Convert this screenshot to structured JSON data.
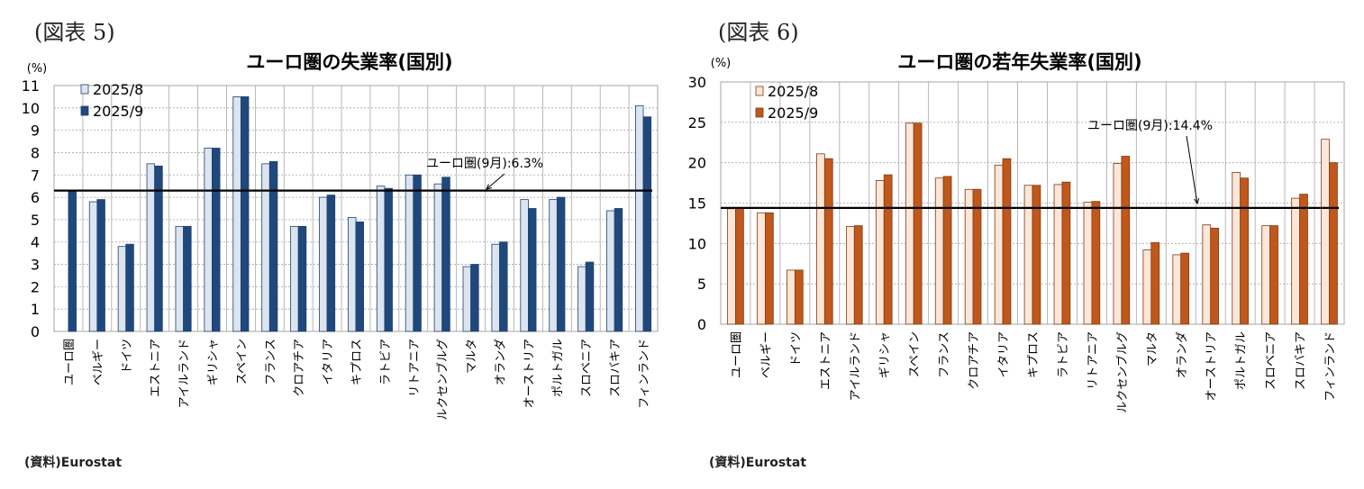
{
  "colors": {
    "c1_s1": "#dbe5f1",
    "c1_s2": "#1f497d",
    "c1_edge": "#24406a",
    "c2_s1": "#fbe6d8",
    "c2_s2": "#c0581b",
    "c2_edge": "#7f3a12",
    "grid": "#a6a6a6"
  },
  "chart_data": [
    {
      "type": "bar",
      "figure_label": "(図表 5)",
      "title": "ユーロ圏の失業率(国別)",
      "ylabel": "(%)",
      "xlabel": "",
      "ylim": [
        0,
        11
      ],
      "yticks": [
        0,
        1,
        2,
        3,
        4,
        5,
        6,
        7,
        8,
        9,
        10,
        11
      ],
      "grid": true,
      "legend_position": "top-left",
      "categories": [
        "ユーロ圏",
        "ベルギー",
        "ドイツ",
        "エストニア",
        "アイルランド",
        "ギリシャ",
        "スペイン",
        "フランス",
        "クロアチア",
        "イタリア",
        "キプロス",
        "ラトビア",
        "リトアニア",
        "ルクセンブルグ",
        "マルタ",
        "オランダ",
        "オーストリア",
        "ポルトガル",
        "スロベニア",
        "スロバキア",
        "フィンランド"
      ],
      "series": [
        {
          "name": "2025/8",
          "values": [
            null,
            5.8,
            3.8,
            7.5,
            4.7,
            8.2,
            10.5,
            7.5,
            4.7,
            6.0,
            5.1,
            6.5,
            7.0,
            6.6,
            2.9,
            3.9,
            5.9,
            5.9,
            2.9,
            5.4,
            10.1
          ]
        },
        {
          "name": "2025/9",
          "values": [
            6.3,
            5.9,
            3.9,
            7.4,
            4.7,
            8.2,
            10.5,
            7.6,
            4.7,
            6.1,
            4.9,
            6.4,
            7.0,
            6.9,
            3.0,
            4.0,
            5.5,
            6.0,
            3.1,
            5.5,
            9.6
          ]
        }
      ],
      "reference_line": {
        "value": 6.3,
        "label": "ユーロ圏(9月):6.3%"
      },
      "source": "(資料)Eurostat"
    },
    {
      "type": "bar",
      "figure_label": "(図表 6)",
      "title": "ユーロ圏の若年失業率(国別)",
      "ylabel": "(%)",
      "xlabel": "",
      "ylim": [
        0,
        30
      ],
      "yticks": [
        0,
        5,
        10,
        15,
        20,
        25,
        30
      ],
      "grid": true,
      "legend_position": "top-left",
      "categories": [
        "ユーロ圏",
        "ベルギー",
        "ドイツ",
        "エストニア",
        "アイルランド",
        "ギリシャ",
        "スペイン",
        "フランス",
        "クロアチア",
        "イタリア",
        "キプロス",
        "ラトビア",
        "リトアニア",
        "ルクセンブルグ",
        "マルタ",
        "オランダ",
        "オーストリア",
        "ポルトガル",
        "スロベニア",
        "スロバキア",
        "フィンランド"
      ],
      "series": [
        {
          "name": "2025/8",
          "values": [
            14.3,
            13.8,
            6.7,
            21.1,
            12.1,
            17.8,
            24.9,
            18.1,
            16.7,
            19.7,
            17.2,
            17.3,
            15.1,
            19.9,
            9.2,
            8.6,
            12.3,
            18.8,
            12.2,
            15.6,
            22.9
          ]
        },
        {
          "name": "2025/9",
          "values": [
            14.4,
            13.8,
            6.7,
            20.5,
            12.2,
            18.5,
            24.9,
            18.3,
            16.7,
            20.5,
            17.2,
            17.6,
            15.2,
            20.8,
            10.1,
            8.8,
            11.9,
            18.1,
            12.2,
            16.1,
            20.0
          ]
        }
      ],
      "reference_line": {
        "value": 14.4,
        "label": "ユーロ圏(9月):14.4%"
      },
      "source": "(資料)Eurostat"
    }
  ]
}
